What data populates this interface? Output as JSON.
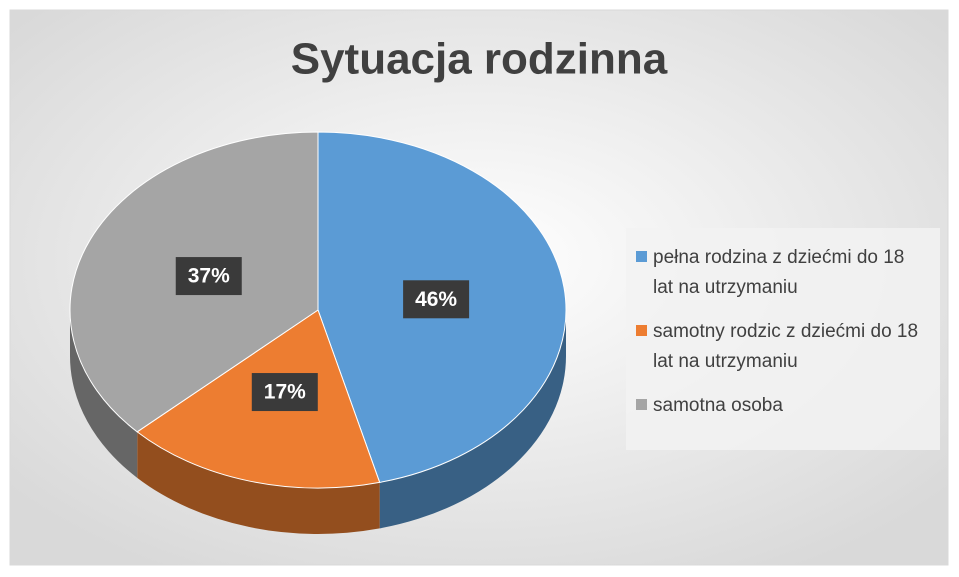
{
  "chart_data": {
    "type": "pie",
    "title": "Sytuacja rodzinna",
    "categories": [
      "pełna rodzina z dziećmi do 18 lat na utrzymaniu",
      "samotny rodzic z dziećmi do 18 lat na utrzymaniu",
      "samotna osoba"
    ],
    "values": [
      46,
      17,
      37
    ],
    "value_labels": [
      "46%",
      "17%",
      "37%"
    ],
    "colors": [
      "#5b9bd5",
      "#ed7d31",
      "#a5a5a5"
    ],
    "legend": "right"
  }
}
